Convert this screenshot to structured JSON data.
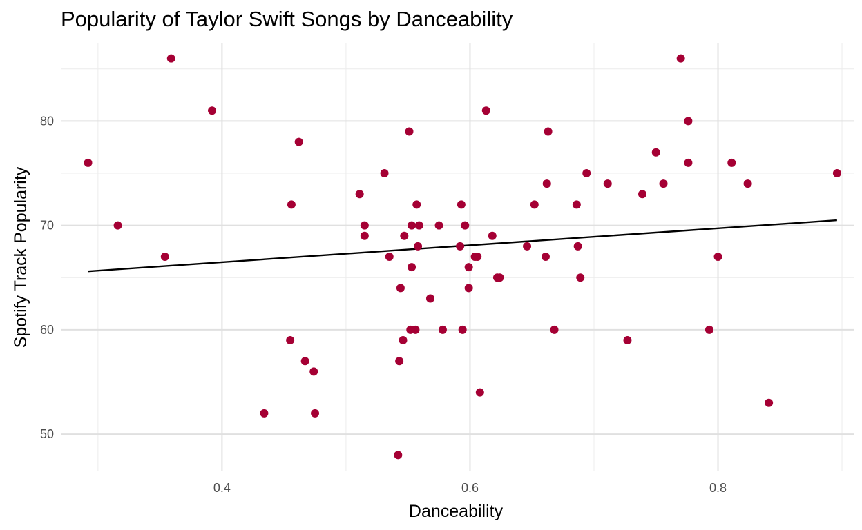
{
  "chart_data": {
    "type": "scatter",
    "title": "Popularity of Taylor Swift Songs by Danceability",
    "xlabel": "Danceability",
    "ylabel": "Spotify Track Popularity",
    "xlim": [
      0.27,
      0.91
    ],
    "ylim": [
      46.5,
      87.5
    ],
    "x_ticks": [
      0.4,
      0.6,
      0.8
    ],
    "x_tick_labels": [
      "0.4",
      "0.6",
      "0.8"
    ],
    "y_ticks": [
      50,
      60,
      70,
      80
    ],
    "y_tick_labels": [
      "50",
      "60",
      "70",
      "80"
    ],
    "grid": true,
    "point_color": "#A50034",
    "trend_line_color": "#000000",
    "trend_line": [
      [
        0.292,
        65.6
      ],
      [
        0.896,
        70.5
      ]
    ],
    "points": [
      [
        0.292,
        76
      ],
      [
        0.316,
        70
      ],
      [
        0.354,
        67
      ],
      [
        0.359,
        86
      ],
      [
        0.392,
        81
      ],
      [
        0.434,
        52
      ],
      [
        0.455,
        59
      ],
      [
        0.456,
        72
      ],
      [
        0.462,
        78
      ],
      [
        0.467,
        57
      ],
      [
        0.474,
        56
      ],
      [
        0.475,
        52
      ],
      [
        0.511,
        73
      ],
      [
        0.515,
        70
      ],
      [
        0.515,
        69
      ],
      [
        0.531,
        75
      ],
      [
        0.535,
        67
      ],
      [
        0.542,
        48
      ],
      [
        0.543,
        57
      ],
      [
        0.544,
        64
      ],
      [
        0.546,
        59
      ],
      [
        0.547,
        69
      ],
      [
        0.551,
        79
      ],
      [
        0.552,
        60
      ],
      [
        0.553,
        66
      ],
      [
        0.553,
        70
      ],
      [
        0.556,
        60
      ],
      [
        0.557,
        72
      ],
      [
        0.558,
        68
      ],
      [
        0.559,
        70
      ],
      [
        0.568,
        63
      ],
      [
        0.575,
        70
      ],
      [
        0.578,
        60
      ],
      [
        0.592,
        68
      ],
      [
        0.593,
        72
      ],
      [
        0.594,
        60
      ],
      [
        0.596,
        70
      ],
      [
        0.599,
        66
      ],
      [
        0.599,
        64
      ],
      [
        0.604,
        67
      ],
      [
        0.606,
        67
      ],
      [
        0.608,
        54
      ],
      [
        0.613,
        81
      ],
      [
        0.618,
        69
      ],
      [
        0.622,
        65
      ],
      [
        0.624,
        65
      ],
      [
        0.646,
        68
      ],
      [
        0.652,
        72
      ],
      [
        0.661,
        67
      ],
      [
        0.662,
        74
      ],
      [
        0.663,
        79
      ],
      [
        0.668,
        60
      ],
      [
        0.686,
        72
      ],
      [
        0.687,
        68
      ],
      [
        0.689,
        65
      ],
      [
        0.694,
        75
      ],
      [
        0.711,
        74
      ],
      [
        0.727,
        59
      ],
      [
        0.739,
        73
      ],
      [
        0.75,
        77
      ],
      [
        0.756,
        74
      ],
      [
        0.77,
        86
      ],
      [
        0.776,
        80
      ],
      [
        0.776,
        76
      ],
      [
        0.793,
        60
      ],
      [
        0.8,
        67
      ],
      [
        0.811,
        76
      ],
      [
        0.824,
        74
      ],
      [
        0.841,
        53
      ],
      [
        0.896,
        75
      ]
    ]
  }
}
